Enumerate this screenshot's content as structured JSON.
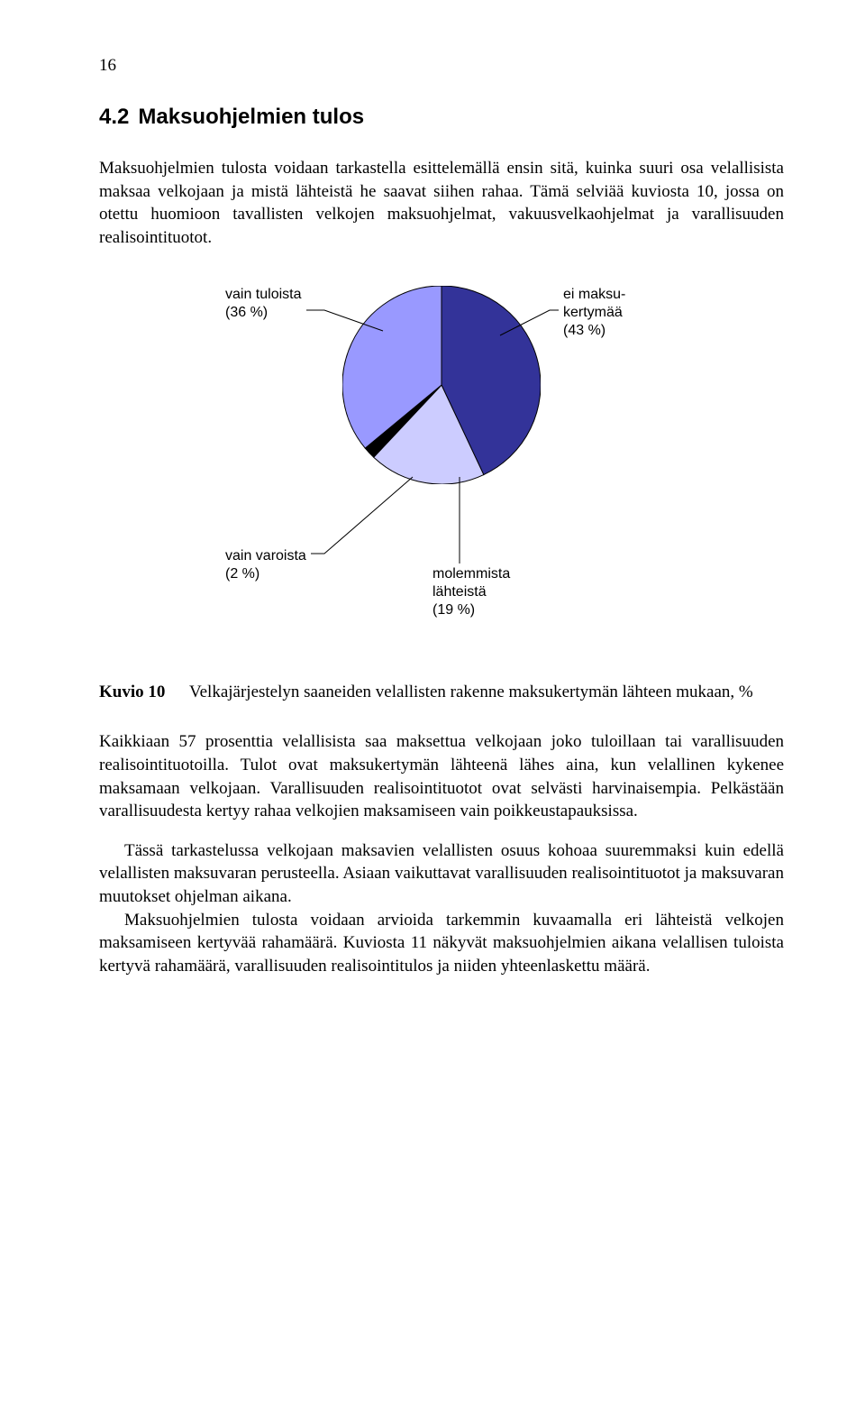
{
  "page_number": "16",
  "heading": {
    "number": "4.2",
    "title": "Maksuohjelmien tulos"
  },
  "paragraphs": {
    "p1": "Maksuohjelmien tulosta voidaan tarkastella esittelemällä ensin sitä, kuinka suuri osa velallisista maksaa velkojaan ja mistä lähteistä he saavat siihen rahaa. Tämä selviää kuviosta 10, jossa on otettu huomioon tavallisten velkojen maksuohjelmat, vakuusvelkaohjelmat ja varallisuuden realisointituotot.",
    "p2": "Kaikkiaan 57 prosenttia velallisista saa maksettua velkojaan joko tuloillaan tai varallisuuden realisointituotoilla. Tulot ovat maksukertymän lähteenä lähes aina, kun velallinen kykenee maksamaan velkojaan. Varallisuuden realisointituotot ovat selvästi harvinaisempia. Pelkästään varallisuudesta kertyy rahaa velkojien maksamiseen vain poikkeustapauksissa.",
    "p3": "Tässä tarkastelussa velkojaan maksavien velallisten osuus kohoaa suuremmaksi kuin edellä velallisten maksuvaran perusteella. Asiaan vaikuttavat varallisuuden realisointituotot ja maksuvaran muutokset ohjelman aikana.",
    "p4": "Maksuohjelmien tulosta voidaan arvioida tarkemmin kuvaamalla eri lähteistä velkojen maksamiseen kertyvää rahamäärä. Kuviosta 11 näkyvät maksuohjelmien aikana velallisen tuloista kertyvä rahamäärä, varallisuuden realisointitulos ja niiden yhteenlaskettu määrä."
  },
  "chart": {
    "type": "pie",
    "background_color": "#ffffff",
    "radius": 110,
    "slices": [
      {
        "key": "ei_maksukertymaa",
        "label_l1": "ei maksu-",
        "label_l2": "kertymää",
        "label_l3": "(43 %)",
        "value": 43,
        "color": "#333399",
        "border": "#000000"
      },
      {
        "key": "molemmista",
        "label_l1": "molemmista",
        "label_l2": "lähteistä",
        "label_l3": "(19 %)",
        "value": 19,
        "color": "#ccccff",
        "border": "#000000"
      },
      {
        "key": "vain_varoista",
        "label_l1": "vain varoista",
        "label_l2": "(2 %)",
        "label_l3": "",
        "value": 2,
        "color": "#000000",
        "border": "#000000"
      },
      {
        "key": "vain_tuloista",
        "label_l1": "vain tuloista",
        "label_l2": "(36 %)",
        "label_l3": "",
        "value": 36,
        "color": "#9999ff",
        "border": "#000000"
      }
    ],
    "label_fontsize": 16,
    "label_fontfamily": "Arial"
  },
  "caption": {
    "label": "Kuvio 10",
    "text": "Velkajärjestelyn saaneiden velallisten rakenne maksukertymän lähteen mukaan, %"
  }
}
